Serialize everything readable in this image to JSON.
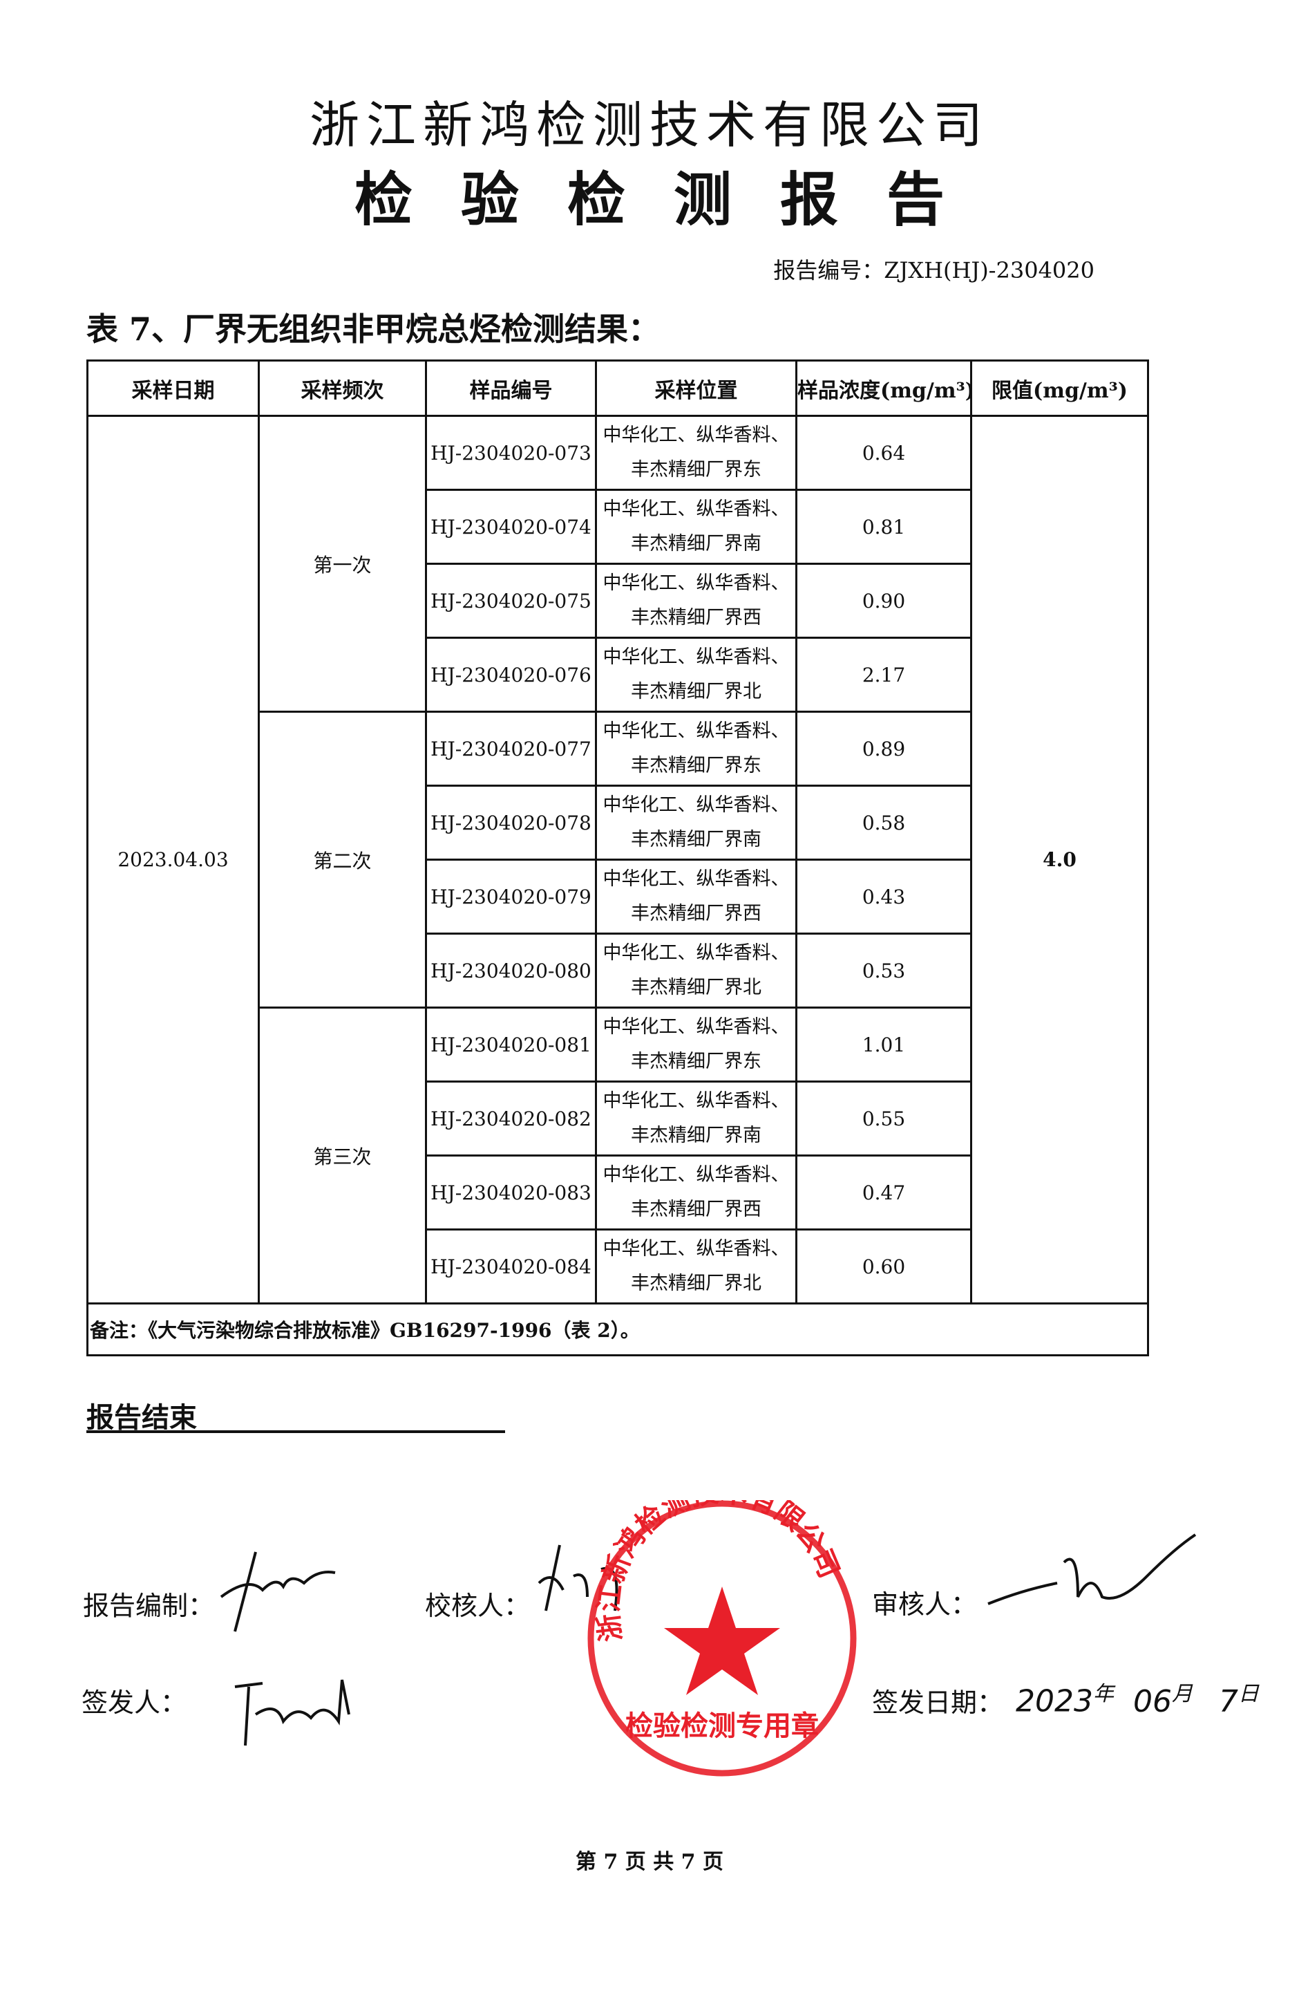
{
  "header": {
    "company": "浙江新鸿检测技术有限公司",
    "title": "检验检测报告",
    "report_no_label": "报告编号：",
    "report_no": "ZJXH(HJ)-2304020"
  },
  "table_title": "表 7、厂界无组织非甲烷总烃检测结果：",
  "columns": [
    "采样日期",
    "采样频次",
    "样品编号",
    "采样位置",
    "样品浓度(mg/m³)",
    "限值(mg/m³)"
  ],
  "date": "2023.04.03",
  "limit": "4.0",
  "groups": [
    {
      "freq": "第一次",
      "rows": [
        {
          "id": "HJ-2304020-073",
          "loc1": "中华化工、纵华香料、",
          "loc2": "丰杰精细厂界东",
          "value": "0.64"
        },
        {
          "id": "HJ-2304020-074",
          "loc1": "中华化工、纵华香料、",
          "loc2": "丰杰精细厂界南",
          "value": "0.81"
        },
        {
          "id": "HJ-2304020-075",
          "loc1": "中华化工、纵华香料、",
          "loc2": "丰杰精细厂界西",
          "value": "0.90"
        },
        {
          "id": "HJ-2304020-076",
          "loc1": "中华化工、纵华香料、",
          "loc2": "丰杰精细厂界北",
          "value": "2.17"
        }
      ]
    },
    {
      "freq": "第二次",
      "rows": [
        {
          "id": "HJ-2304020-077",
          "loc1": "中华化工、纵华香料、",
          "loc2": "丰杰精细厂界东",
          "value": "0.89"
        },
        {
          "id": "HJ-2304020-078",
          "loc1": "中华化工、纵华香料、",
          "loc2": "丰杰精细厂界南",
          "value": "0.58"
        },
        {
          "id": "HJ-2304020-079",
          "loc1": "中华化工、纵华香料、",
          "loc2": "丰杰精细厂界西",
          "value": "0.43"
        },
        {
          "id": "HJ-2304020-080",
          "loc1": "中华化工、纵华香料、",
          "loc2": "丰杰精细厂界北",
          "value": "0.53"
        }
      ]
    },
    {
      "freq": "第三次",
      "rows": [
        {
          "id": "HJ-2304020-081",
          "loc1": "中华化工、纵华香料、",
          "loc2": "丰杰精细厂界东",
          "value": "1.01"
        },
        {
          "id": "HJ-2304020-082",
          "loc1": "中华化工、纵华香料、",
          "loc2": "丰杰精细厂界南",
          "value": "0.55"
        },
        {
          "id": "HJ-2304020-083",
          "loc1": "中华化工、纵华香料、",
          "loc2": "丰杰精细厂界西",
          "value": "0.47"
        },
        {
          "id": "HJ-2304020-084",
          "loc1": "中华化工、纵华香料、",
          "loc2": "丰杰精细厂界北",
          "value": "0.60"
        }
      ]
    }
  ],
  "note": "备注：《大气污染物综合排放标准》GB16297-1996（表 2）。",
  "end_label": "报告结束",
  "signatures": {
    "compiler": "报告编制：",
    "checker": "校核人：",
    "reviewer": "审核人：",
    "issuer": "签发人：",
    "date_label": "签发日期：",
    "date_year": "2023",
    "year": "年",
    "date_month": "06",
    "month": "月",
    "date_day": "7",
    "day": "日"
  },
  "stamp": {
    "text_top": "浙江新鸿检测技术有限公司",
    "text_bottom": "检验检测专用章",
    "color": "#e8202a"
  },
  "footer": "第 7 页  共 7 页"
}
